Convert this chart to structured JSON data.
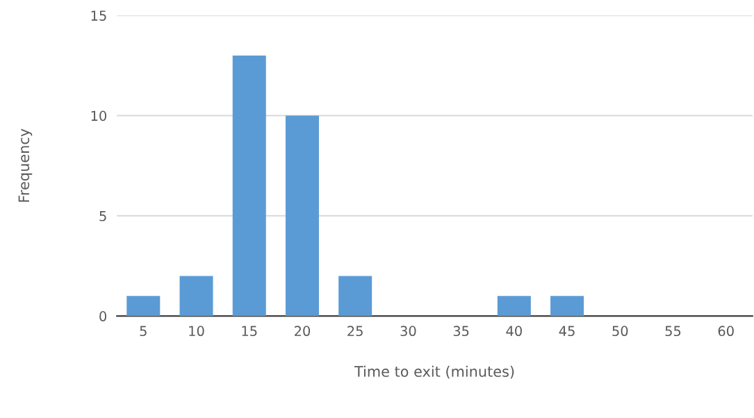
{
  "chart_data": {
    "type": "bar",
    "xlabel": "Time to exit (minutes)",
    "ylabel": "Frequency",
    "categories": [
      "5",
      "10",
      "15",
      "20",
      "25",
      "30",
      "35",
      "40",
      "45",
      "50",
      "55",
      "60"
    ],
    "values": [
      1,
      2,
      13,
      10,
      2,
      0,
      0,
      1,
      1,
      0,
      0,
      0
    ],
    "color": "#5b9bd5",
    "ylim": [
      0,
      15
    ],
    "yticks": [
      0,
      5,
      10,
      15
    ],
    "grid": "y"
  }
}
